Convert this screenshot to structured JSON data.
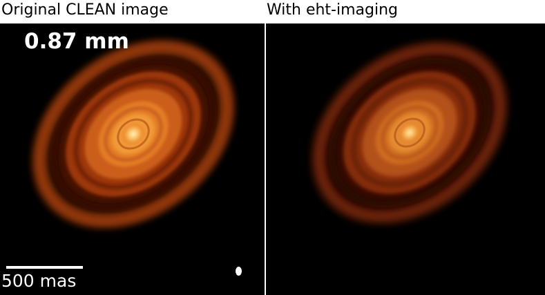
{
  "panels": {
    "left": {
      "title": "Original CLEAN image",
      "wavelength": "0.87 mm",
      "scalebar_label": "500 mas"
    },
    "right": {
      "title": "With eht-imaging"
    }
  },
  "colors": {
    "background": "#000000",
    "disk_outer": "#7a1a00",
    "disk_mid": "#c04a0a",
    "disk_inner": "#e87a20",
    "core": "#fff3c0"
  }
}
